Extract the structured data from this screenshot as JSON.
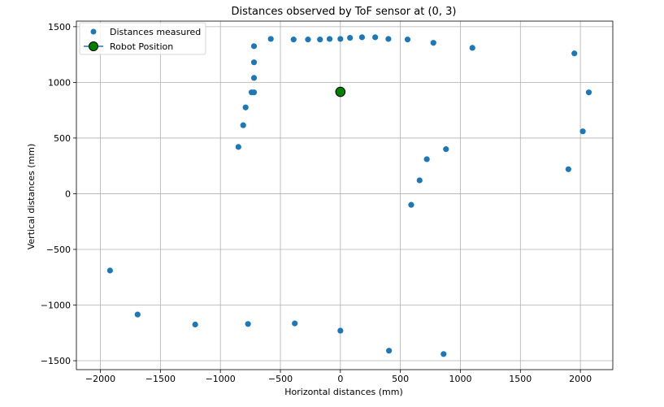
{
  "chart_data": {
    "type": "scatter",
    "title": "Distances observed by ToF sensor at (0, 3)",
    "xlabel": "Horizontal distances (mm)",
    "ylabel": "Vertical distances (mm)",
    "xlim": [
      -2200,
      2270
    ],
    "ylim": [
      -1580,
      1550
    ],
    "xticks": [
      -2000,
      -1500,
      -1000,
      -500,
      0,
      500,
      1000,
      1500,
      2000
    ],
    "yticks": [
      -1500,
      -1000,
      -500,
      0,
      500,
      1000,
      1500
    ],
    "grid": true,
    "legend_position": "upper-left",
    "series": [
      {
        "name": "Distances measured",
        "color": "#1f77b4",
        "marker": "circle",
        "x": [
          -1920,
          -1690,
          -1210,
          -770,
          -380,
          0,
          405,
          860,
          590,
          660,
          720,
          880,
          1900,
          2020,
          2070,
          1950,
          1100,
          775,
          560,
          400,
          290,
          180,
          80,
          0,
          -90,
          -170,
          -270,
          -390,
          -580,
          -720,
          -720,
          -720,
          -740,
          -720,
          -790,
          -810,
          -850
        ],
        "y": [
          -690,
          -1085,
          -1175,
          -1170,
          -1165,
          -1230,
          -1410,
          -1440,
          -100,
          120,
          310,
          400,
          220,
          560,
          910,
          1260,
          1310,
          1355,
          1385,
          1390,
          1405,
          1405,
          1400,
          1390,
          1390,
          1385,
          1385,
          1385,
          1390,
          1325,
          1180,
          1040,
          910,
          910,
          775,
          615,
          420
        ]
      },
      {
        "name": "Robot Position",
        "color": "#008000",
        "marker": "circle-line",
        "x": [
          0
        ],
        "y": [
          915
        ]
      }
    ]
  }
}
